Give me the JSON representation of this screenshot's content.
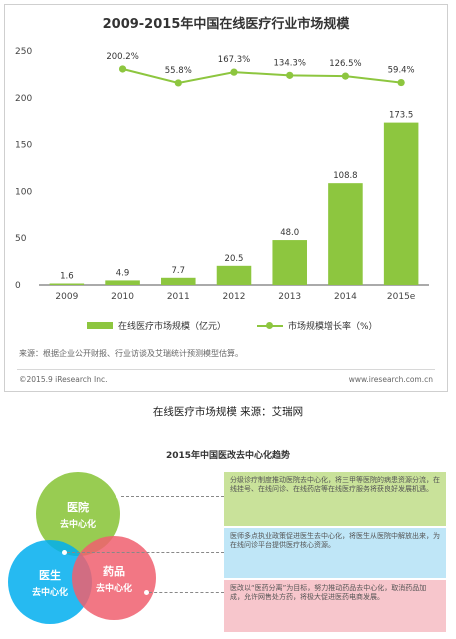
{
  "chart_data": {
    "type": "bar",
    "title": "2009-2015年中国在线医疗行业市场规模",
    "categories": [
      "2009",
      "2010",
      "2011",
      "2012",
      "2013",
      "2014",
      "2015e"
    ],
    "series": [
      {
        "name": "在线医疗市场规模（亿元）",
        "type": "bar",
        "color": "#8dc63f",
        "values": [
          1.6,
          4.9,
          7.7,
          20.5,
          48.0,
          108.8,
          173.5
        ],
        "labels": [
          "1.6",
          "4.9",
          "7.7",
          "20.5",
          "48.0",
          "108.8",
          "173.5"
        ]
      },
      {
        "name": "市场规模增长率（%）",
        "type": "line",
        "color": "#8dc63f",
        "values": [
          null,
          200.2,
          55.8,
          167.3,
          134.3,
          126.5,
          59.4
        ],
        "labels": [
          "",
          "200.2%",
          "55.8%",
          "167.3%",
          "134.3%",
          "126.5%",
          "59.4%"
        ]
      }
    ],
    "y_ticks": [
      "0",
      "50",
      "100",
      "150",
      "200",
      "250"
    ],
    "ylim": [
      0,
      250
    ],
    "grid": false,
    "legend": "bottom"
  },
  "chart_card": {
    "source_note": "来源：根据企业公开财报、行业访谈及艾瑞统计预测模型估算。",
    "copyright": "©2015.9 iResearch Inc.",
    "website": "www.iresearch.com.cn"
  },
  "caption": "在线医疗市场规模 来源：艾瑞网",
  "infographic": {
    "title": "2015年中国医改去中心化趋势",
    "circles": [
      {
        "t1": "医院",
        "t2": "去中心化",
        "color": "#8dc63f"
      },
      {
        "t1": "医生",
        "t2": "去中心化",
        "color": "#00aeef"
      },
      {
        "t1": "药品",
        "t2": "去中心化",
        "color": "#f05f6e"
      }
    ],
    "boxes": [
      {
        "text": "分级诊疗制度推动医院去中心化，将三甲等医院的病患资源分流，在线挂号、在线问诊、在线药店等在线医疗服务将获良好发展机遇。",
        "color": "#c9e29a"
      },
      {
        "text": "医师多点执业政策促进医生去中心化，将医生从医院中解放出来，为在线问诊平台提供医疗核心资源。",
        "color": "#bfe6f7"
      },
      {
        "text": "医改以“医药分离”为目标，努力推动药品去中心化，取消药品加成，允许网售处方药，将极大促进医药电商发展。",
        "color": "#f7c6cc"
      }
    ]
  }
}
